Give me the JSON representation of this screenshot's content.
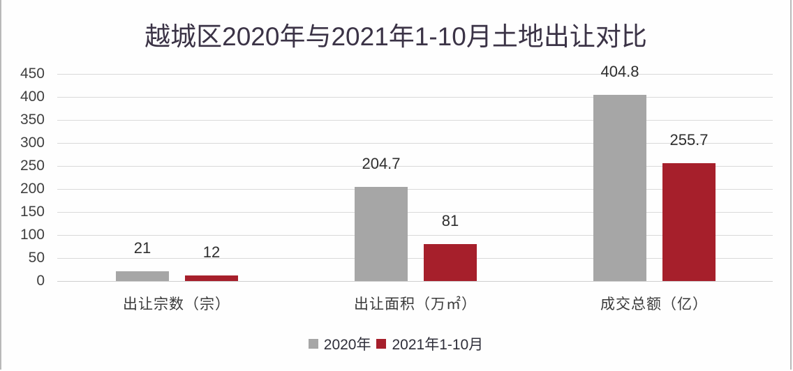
{
  "chart_data": {
    "type": "bar",
    "title": "越城区2020年与2021年1-10月土地出让对比",
    "xlabel": "",
    "ylabel": "",
    "categories": [
      "出让宗数（宗）",
      "出让面积（万㎡）",
      "成交总额（亿）"
    ],
    "series": [
      {
        "name": "2020年",
        "color": "#a6a6a6",
        "values": [
          21,
          204.7,
          404.8
        ]
      },
      {
        "name": "2021年1-10月",
        "color": "#a61f2b",
        "values": [
          12,
          81,
          255.7
        ]
      }
    ],
    "data_labels": [
      [
        "21",
        "12"
      ],
      [
        "204.7",
        "81"
      ],
      [
        "404.8",
        "255.7"
      ]
    ],
    "ylim": [
      0,
      450
    ],
    "yticks": [
      0,
      50,
      100,
      150,
      200,
      250,
      300,
      350,
      400,
      450
    ],
    "grid": true,
    "legend_position": "bottom"
  }
}
